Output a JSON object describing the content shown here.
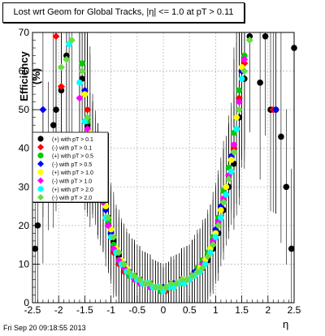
{
  "title": "Lost wrt Geom for Global Tracks, |η| <= 1.0 at pT > 0.11",
  "footer": "Fri Sep 20 09:18:55 2013",
  "chart_data": {
    "type": "scatter",
    "xlabel": "η",
    "ylabel": "Efficiency (%)",
    "xlim": [
      -2.5,
      2.5
    ],
    "ylim": [
      0,
      70
    ],
    "x_ticks": [
      -2.5,
      -2,
      -1.5,
      -1,
      -0.5,
      0,
      0.5,
      1,
      1.5,
      2,
      2.5
    ],
    "y_ticks": [
      0,
      10,
      20,
      30,
      40,
      50,
      60,
      70
    ],
    "grid": true,
    "legend_position": "left-middle",
    "series": [
      {
        "name": "(+) with pT > 0.1",
        "color": "#000000",
        "points": [
          [
            -2.45,
            14
          ],
          [
            -2.4,
            20
          ],
          [
            -2.3,
            30
          ],
          [
            -2.2,
            38
          ],
          [
            -2.1,
            46
          ],
          [
            -2.05,
            50
          ],
          [
            -1.95,
            55
          ],
          [
            -1.85,
            64
          ],
          [
            -1.55,
            58
          ],
          [
            -1.45,
            46
          ],
          [
            -1.35,
            38
          ],
          [
            -1.25,
            33
          ],
          [
            -1.15,
            28
          ],
          [
            -1.05,
            22
          ],
          [
            -0.95,
            16
          ],
          [
            -0.85,
            12
          ],
          [
            -0.75,
            10
          ],
          [
            -0.65,
            8
          ],
          [
            -0.55,
            7
          ],
          [
            -0.45,
            6
          ],
          [
            -0.35,
            5
          ],
          [
            -0.25,
            5
          ],
          [
            -0.15,
            4
          ],
          [
            -0.05,
            4
          ],
          [
            0.05,
            4
          ],
          [
            0.15,
            5
          ],
          [
            0.25,
            5
          ],
          [
            0.35,
            6
          ],
          [
            0.45,
            6
          ],
          [
            0.55,
            7
          ],
          [
            0.65,
            8
          ],
          [
            0.75,
            9
          ],
          [
            0.85,
            11
          ],
          [
            0.95,
            14
          ],
          [
            1.05,
            18
          ],
          [
            1.15,
            24
          ],
          [
            1.25,
            30
          ],
          [
            1.35,
            36
          ],
          [
            1.45,
            48
          ],
          [
            1.55,
            58
          ],
          [
            1.65,
            69
          ],
          [
            1.85,
            57
          ],
          [
            1.95,
            69
          ],
          [
            2.05,
            50
          ],
          [
            2.15,
            50
          ],
          [
            2.25,
            43
          ],
          [
            2.35,
            30
          ],
          [
            2.45,
            14
          ],
          [
            2.5,
            66
          ]
        ]
      },
      {
        "name": "(-) with pT > 0.1",
        "color": "#ff0000",
        "points": [
          [
            -2.05,
            69
          ],
          [
            -1.95,
            56
          ],
          [
            -1.45,
            50
          ],
          [
            -1.35,
            37
          ],
          [
            -1.25,
            30
          ],
          [
            -1.15,
            26
          ],
          [
            -1.05,
            20
          ],
          [
            -0.95,
            13
          ],
          [
            -0.85,
            10
          ],
          [
            -0.75,
            8
          ],
          [
            -0.65,
            7
          ],
          [
            -0.55,
            6
          ],
          [
            -0.45,
            5
          ],
          [
            -0.35,
            5
          ],
          [
            -0.25,
            4
          ],
          [
            -0.15,
            4
          ],
          [
            -0.05,
            4
          ],
          [
            0.05,
            3
          ],
          [
            0.15,
            4
          ],
          [
            0.25,
            5
          ],
          [
            0.35,
            5
          ],
          [
            0.45,
            6
          ],
          [
            0.55,
            7
          ],
          [
            0.65,
            8
          ],
          [
            0.75,
            10
          ],
          [
            0.85,
            12
          ],
          [
            0.95,
            15
          ],
          [
            1.05,
            20
          ],
          [
            1.15,
            27
          ],
          [
            1.25,
            33
          ],
          [
            1.35,
            40
          ],
          [
            1.45,
            53
          ],
          [
            1.55,
            62
          ],
          [
            2.1,
            50
          ]
        ]
      },
      {
        "name": "(+) with pT > 0.5",
        "color": "#00cc00",
        "points": [
          [
            -1.55,
            62
          ],
          [
            -1.45,
            47
          ],
          [
            -1.35,
            38
          ],
          [
            -1.25,
            31
          ],
          [
            -1.15,
            27
          ],
          [
            -1.05,
            21
          ],
          [
            -0.95,
            15
          ],
          [
            -0.85,
            11
          ],
          [
            -0.75,
            9
          ],
          [
            -0.65,
            7
          ],
          [
            -0.55,
            6
          ],
          [
            -0.45,
            5
          ],
          [
            -0.35,
            5
          ],
          [
            -0.25,
            4
          ],
          [
            -0.15,
            4
          ],
          [
            -0.05,
            3
          ],
          [
            0.05,
            4
          ],
          [
            0.15,
            4
          ],
          [
            0.25,
            5
          ],
          [
            0.35,
            5
          ],
          [
            0.45,
            6
          ],
          [
            0.55,
            7
          ],
          [
            0.65,
            9
          ],
          [
            0.75,
            11
          ],
          [
            0.85,
            13
          ],
          [
            0.95,
            17
          ],
          [
            1.05,
            22
          ],
          [
            1.15,
            29
          ],
          [
            1.25,
            35
          ],
          [
            1.35,
            44
          ],
          [
            1.45,
            55
          ],
          [
            1.55,
            64
          ]
        ]
      },
      {
        "name": "(-) with pT > 0.5",
        "color": "#0000ff",
        "points": [
          [
            -2.3,
            50
          ],
          [
            -1.5,
            55
          ],
          [
            -1.4,
            42
          ],
          [
            -1.3,
            35
          ],
          [
            -1.2,
            29
          ],
          [
            -1.1,
            24
          ],
          [
            -1.0,
            18
          ],
          [
            -0.9,
            13
          ],
          [
            -0.8,
            10
          ],
          [
            -0.7,
            8
          ],
          [
            -0.6,
            7
          ],
          [
            -0.5,
            6
          ],
          [
            -0.4,
            5
          ],
          [
            -0.3,
            5
          ],
          [
            -0.2,
            4
          ],
          [
            -0.1,
            4
          ],
          [
            0.0,
            4
          ],
          [
            0.1,
            4
          ],
          [
            0.2,
            5
          ],
          [
            0.3,
            5
          ],
          [
            0.4,
            6
          ],
          [
            0.5,
            6
          ],
          [
            0.6,
            8
          ],
          [
            0.7,
            9
          ],
          [
            0.8,
            11
          ],
          [
            0.9,
            14
          ],
          [
            1.0,
            19
          ],
          [
            1.1,
            25
          ],
          [
            1.2,
            30
          ],
          [
            1.3,
            38
          ],
          [
            1.4,
            48
          ],
          [
            1.5,
            60
          ],
          [
            2.15,
            50
          ]
        ]
      },
      {
        "name": "(+) with pT > 1.0",
        "color": "#ffff00",
        "points": [
          [
            -1.5,
            54
          ],
          [
            -1.4,
            44
          ],
          [
            -1.3,
            36
          ],
          [
            -1.2,
            30
          ],
          [
            -1.1,
            25
          ],
          [
            -1.0,
            19
          ],
          [
            -0.9,
            14
          ],
          [
            -0.8,
            11
          ],
          [
            -0.7,
            9
          ],
          [
            -0.6,
            7
          ],
          [
            -0.5,
            6
          ],
          [
            -0.4,
            5
          ],
          [
            -0.3,
            5
          ],
          [
            -0.2,
            4
          ],
          [
            -0.1,
            4
          ],
          [
            0.0,
            3
          ],
          [
            0.1,
            4
          ],
          [
            0.2,
            4
          ],
          [
            0.3,
            5
          ],
          [
            0.4,
            6
          ],
          [
            0.5,
            6
          ],
          [
            0.6,
            7
          ],
          [
            0.7,
            9
          ],
          [
            0.8,
            11
          ],
          [
            0.9,
            14
          ],
          [
            1.0,
            18
          ],
          [
            1.1,
            24
          ],
          [
            1.2,
            30
          ],
          [
            1.3,
            37
          ],
          [
            1.4,
            48
          ],
          [
            1.5,
            61
          ]
        ]
      },
      {
        "name": "(-) with pT > 1.0",
        "color": "#ff00ff",
        "points": [
          [
            -1.6,
            53
          ],
          [
            -1.45,
            45
          ],
          [
            -1.35,
            36
          ],
          [
            -1.25,
            31
          ],
          [
            -1.15,
            26
          ],
          [
            -1.05,
            20
          ],
          [
            -0.95,
            14
          ],
          [
            -0.85,
            11
          ],
          [
            -0.75,
            9
          ],
          [
            -0.65,
            8
          ],
          [
            -0.55,
            6
          ],
          [
            -0.45,
            5
          ],
          [
            -0.35,
            5
          ],
          [
            -0.25,
            4
          ],
          [
            -0.15,
            4
          ],
          [
            -0.05,
            4
          ],
          [
            0.05,
            4
          ],
          [
            0.15,
            5
          ],
          [
            0.25,
            5
          ],
          [
            0.35,
            6
          ],
          [
            0.45,
            6
          ],
          [
            0.55,
            7
          ],
          [
            0.65,
            8
          ],
          [
            0.75,
            10
          ],
          [
            0.85,
            12
          ],
          [
            0.95,
            16
          ],
          [
            1.05,
            21
          ],
          [
            1.15,
            27
          ],
          [
            1.25,
            33
          ],
          [
            1.35,
            41
          ],
          [
            1.45,
            52
          ],
          [
            1.55,
            63
          ]
        ]
      },
      {
        "name": "(+) with pT > 2.0",
        "color": "#00ffff",
        "points": [
          [
            -1.8,
            67
          ],
          [
            -1.6,
            57
          ],
          [
            -1.5,
            47
          ],
          [
            -1.4,
            40
          ],
          [
            -1.3,
            34
          ],
          [
            -1.2,
            28
          ],
          [
            -1.1,
            22
          ],
          [
            -1.0,
            17
          ],
          [
            -0.9,
            13
          ],
          [
            -0.8,
            10
          ],
          [
            -0.7,
            8
          ],
          [
            -0.6,
            7
          ],
          [
            -0.5,
            6
          ],
          [
            -0.4,
            5
          ],
          [
            -0.3,
            5
          ],
          [
            -0.2,
            4
          ],
          [
            -0.1,
            4
          ],
          [
            0.0,
            3
          ],
          [
            0.1,
            4
          ],
          [
            0.2,
            4
          ],
          [
            0.3,
            5
          ],
          [
            0.4,
            5
          ],
          [
            0.5,
            6
          ],
          [
            0.6,
            7
          ],
          [
            0.7,
            8
          ],
          [
            0.8,
            10
          ],
          [
            0.9,
            13
          ],
          [
            1.0,
            17
          ],
          [
            1.1,
            22
          ],
          [
            1.2,
            28
          ],
          [
            1.3,
            34
          ],
          [
            1.4,
            45
          ],
          [
            1.5,
            58
          ]
        ]
      },
      {
        "name": "(-) with pT > 2.0",
        "color": "#66dd44",
        "points": [
          [
            -1.95,
            61
          ],
          [
            -1.85,
            63
          ],
          [
            -1.75,
            68
          ],
          [
            -1.55,
            60
          ],
          [
            -1.45,
            48
          ],
          [
            -1.35,
            40
          ],
          [
            -1.25,
            33
          ],
          [
            -1.15,
            27
          ],
          [
            -1.05,
            22
          ],
          [
            -0.95,
            17
          ],
          [
            -0.85,
            13
          ],
          [
            -0.75,
            10
          ],
          [
            -0.65,
            8
          ],
          [
            -0.55,
            7
          ],
          [
            -0.45,
            6
          ],
          [
            -0.35,
            5
          ],
          [
            -0.25,
            5
          ],
          [
            -0.15,
            4
          ],
          [
            -0.05,
            4
          ],
          [
            0.05,
            4
          ],
          [
            0.15,
            5
          ],
          [
            0.25,
            5
          ],
          [
            0.35,
            6
          ],
          [
            0.45,
            6
          ],
          [
            0.55,
            7
          ],
          [
            0.65,
            8
          ],
          [
            0.75,
            9
          ],
          [
            0.85,
            12
          ],
          [
            0.95,
            15
          ],
          [
            1.05,
            20
          ],
          [
            1.15,
            26
          ],
          [
            1.25,
            32
          ],
          [
            1.35,
            39
          ],
          [
            1.45,
            50
          ],
          [
            1.55,
            60
          ],
          [
            1.65,
            68
          ]
        ]
      }
    ]
  }
}
